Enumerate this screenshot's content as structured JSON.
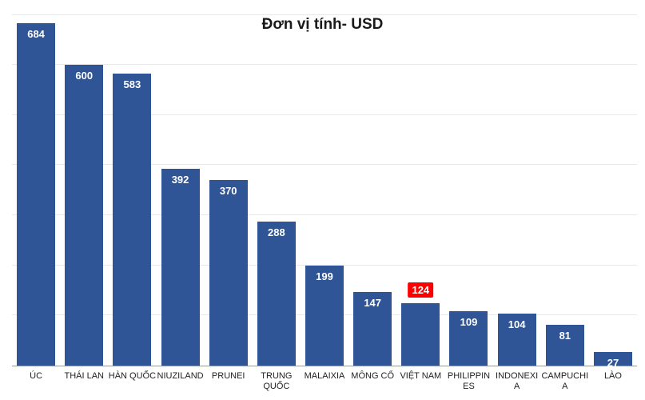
{
  "chart": {
    "type": "bar",
    "title": "Đơn vị tính-  USD",
    "title_fontsize": 19,
    "title_color": "#1a1a1a",
    "background_color": "#ffffff",
    "grid_color": "#e8e8e8",
    "axis_color": "#999999",
    "y_max": 720,
    "gridline_values": [
      100,
      200,
      300,
      400,
      500,
      600,
      700
    ],
    "value_label_fontsize": 13,
    "value_label_color": "#ffffff",
    "x_label_fontsize": 11,
    "x_label_color": "#222222",
    "bar_max_width": 48,
    "bars": [
      {
        "label": "ÚC",
        "value": 684,
        "color": "#2f5597",
        "highlight": false
      },
      {
        "label": "THÁI LAN",
        "value": 600,
        "color": "#2f5597",
        "highlight": false
      },
      {
        "label": "HÀN QUỐC",
        "value": 583,
        "color": "#2f5597",
        "highlight": false
      },
      {
        "label": "NIUZILAND",
        "value": 392,
        "color": "#2f5597",
        "highlight": false
      },
      {
        "label": "PRUNEI",
        "value": 370,
        "color": "#2f5597",
        "highlight": false
      },
      {
        "label": "TRUNG QUỐC",
        "value": 288,
        "color": "#2f5597",
        "highlight": false
      },
      {
        "label": "MALAIXIA",
        "value": 199,
        "color": "#2f5597",
        "highlight": false
      },
      {
        "label": "MÔNG CỔ",
        "value": 147,
        "color": "#2f5597",
        "highlight": false
      },
      {
        "label": "VIỆT NAM",
        "value": 124,
        "color": "#2f5597",
        "highlight": true,
        "highlight_bg": "#ff0000",
        "highlight_text": "#ffffff"
      },
      {
        "label": "PHILIPPINES",
        "value": 109,
        "color": "#2f5597",
        "highlight": false
      },
      {
        "label": "INDONEXIA",
        "value": 104,
        "color": "#2f5597",
        "highlight": false
      },
      {
        "label": "CAMPUCHIA",
        "value": 81,
        "color": "#2f5597",
        "highlight": false
      },
      {
        "label": "LÀO",
        "value": 27,
        "color": "#2f5597",
        "highlight": false
      }
    ]
  }
}
